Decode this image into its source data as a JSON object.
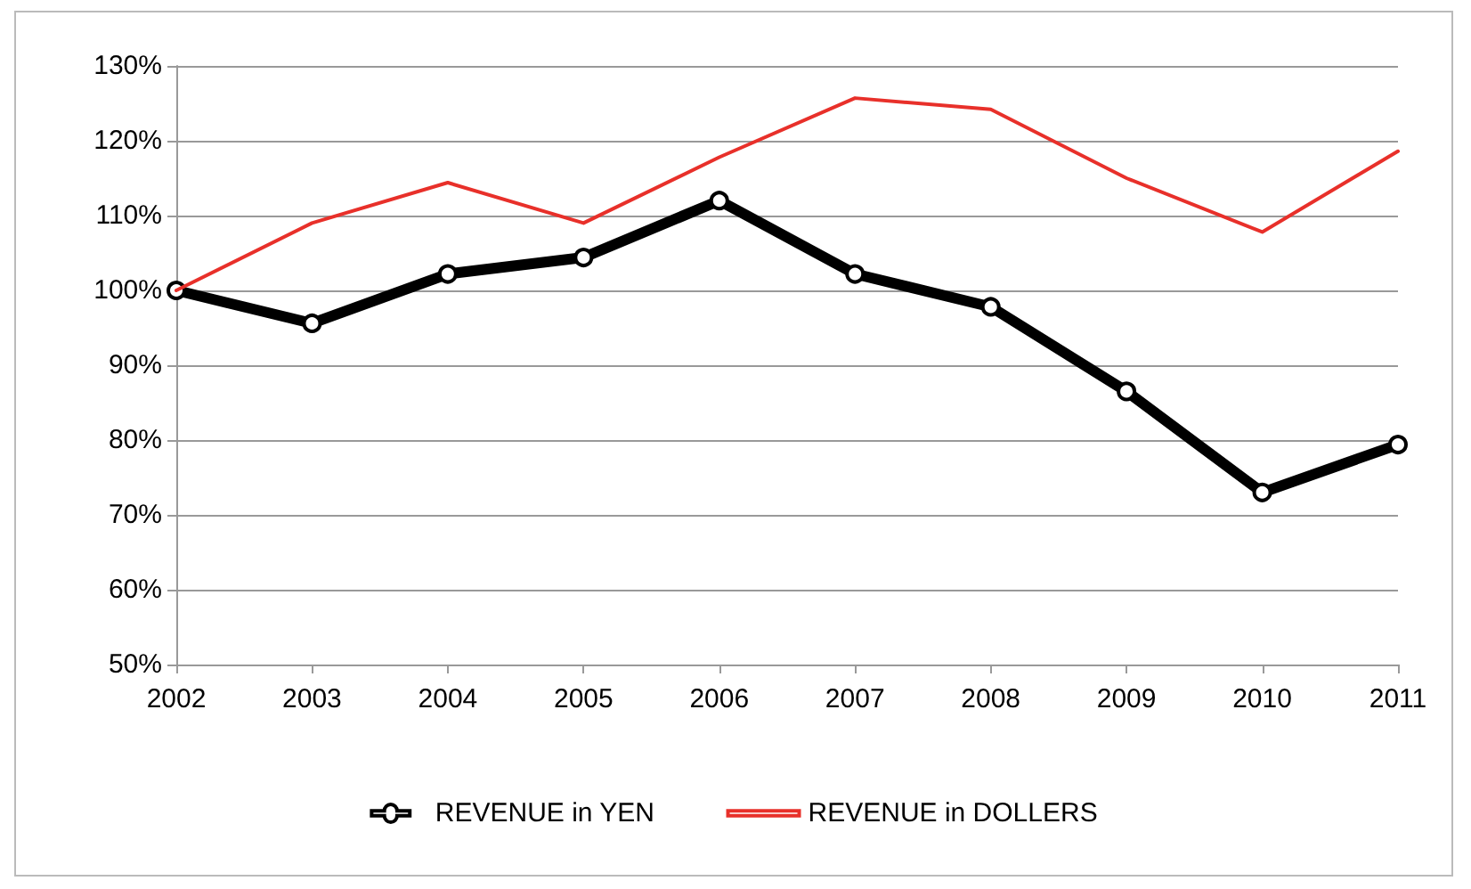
{
  "chart_data": {
    "type": "line",
    "categories": [
      "2002",
      "2003",
      "2004",
      "2005",
      "2006",
      "2007",
      "2008",
      "2009",
      "2010",
      "2011"
    ],
    "series": [
      {
        "name": "REVENUE in YEN",
        "color": "#000000",
        "marker": "circle",
        "values": [
          100,
          95.6,
          102.2,
          104.4,
          112,
          102.2,
          97.8,
          86.5,
          73,
          79.4
        ]
      },
      {
        "name": "REVENUE in DOLLERS",
        "color": "#e8302a",
        "marker": "none",
        "values": [
          100,
          109,
          114.4,
          109,
          117.8,
          125.7,
          124.2,
          115,
          107.8,
          118.6
        ]
      }
    ],
    "ylim": [
      50,
      130
    ],
    "yticks": [
      {
        "value": 50,
        "label": "50%"
      },
      {
        "value": 60,
        "label": "60%"
      },
      {
        "value": 70,
        "label": "70%"
      },
      {
        "value": 80,
        "label": "80%"
      },
      {
        "value": 90,
        "label": "90%"
      },
      {
        "value": 100,
        "label": "100%"
      },
      {
        "value": 110,
        "label": "110%"
      },
      {
        "value": 120,
        "label": "120%"
      },
      {
        "value": 130,
        "label": "130%"
      }
    ],
    "grid": "y",
    "legend": "bottom"
  }
}
